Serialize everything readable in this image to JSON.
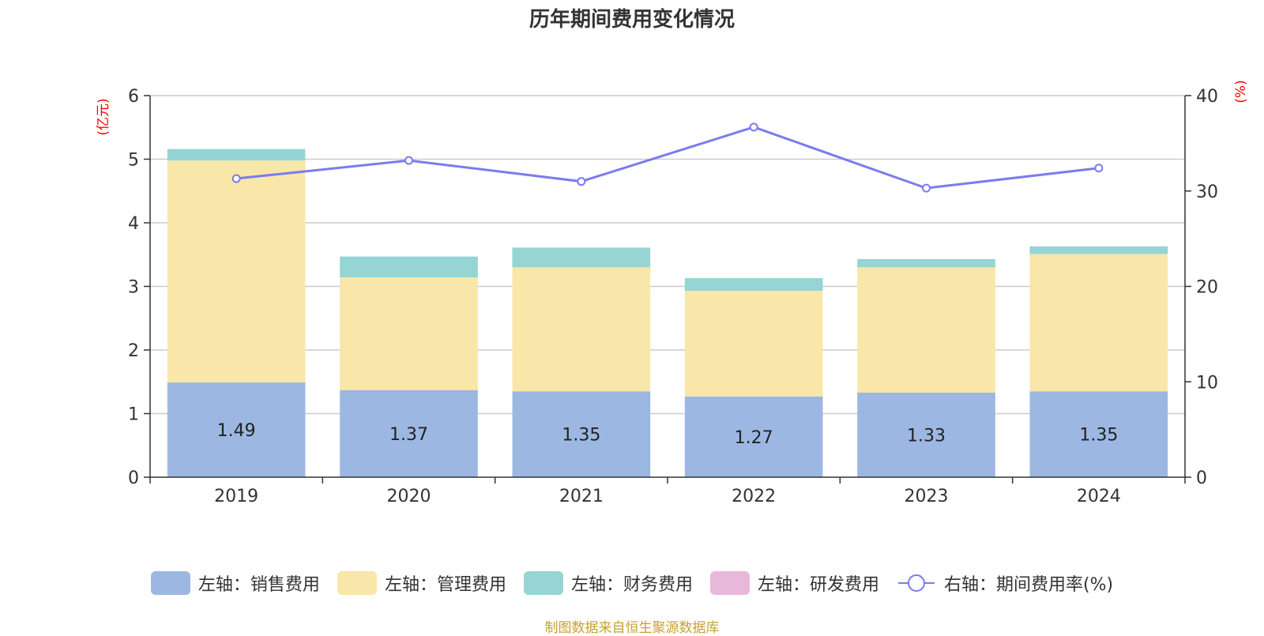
{
  "chart_data": {
    "type": "bar",
    "title": "历年期间费用变化情况",
    "categories": [
      "2019",
      "2020",
      "2021",
      "2022",
      "2023",
      "2024"
    ],
    "left_axis": {
      "unit_label": "(亿元)",
      "ticks": [
        "0",
        "1",
        "2",
        "3",
        "4",
        "5",
        "6"
      ],
      "ylim": [
        0,
        6
      ]
    },
    "right_axis": {
      "unit_label": "(%)",
      "ticks": [
        "0",
        "10",
        "20",
        "30",
        "40"
      ],
      "ylim": [
        0,
        40
      ]
    },
    "series": [
      {
        "name": "左轴：销售费用",
        "type": "bar",
        "stack": true,
        "color": "#9cb8e2",
        "values": [
          1.49,
          1.37,
          1.35,
          1.27,
          1.33,
          1.35
        ],
        "labels": [
          "1.49",
          "1.37",
          "1.35",
          "1.27",
          "1.33",
          "1.35"
        ]
      },
      {
        "name": "左轴：管理费用",
        "type": "bar",
        "stack": true,
        "color": "#f8e7a8",
        "values": [
          3.49,
          1.77,
          1.95,
          1.66,
          1.97,
          2.16
        ]
      },
      {
        "name": "左轴：财务费用",
        "type": "bar",
        "stack": true,
        "color": "#97d4d4",
        "values": [
          0.18,
          0.33,
          0.31,
          0.2,
          0.13,
          0.12
        ]
      },
      {
        "name": "左轴：研发费用",
        "type": "bar",
        "stack": true,
        "color": "#e8b8da",
        "values": [
          0,
          0,
          0,
          0,
          0,
          0
        ]
      },
      {
        "name": "右轴：期间费用率(%)",
        "type": "line",
        "axis": "right",
        "color": "#7b7bef",
        "values": [
          31.3,
          33.2,
          31.0,
          36.7,
          30.3,
          32.4
        ]
      }
    ],
    "grid": true,
    "legend_position": "bottom"
  },
  "source": "制图数据来自恒生聚源数据库"
}
